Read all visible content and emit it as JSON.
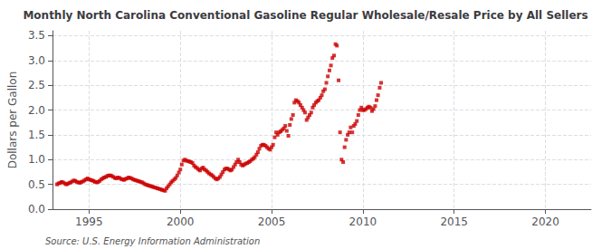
{
  "chart_data": {
    "type": "scatter",
    "title": "Monthly North Carolina Conventional Gasoline Regular Wholesale/Resale Price by All Sellers",
    "ylabel": "Dollars per Gallon",
    "annotations": [
      "Source: U.S. Energy Information Administration"
    ],
    "color": "#cc0000",
    "marker": "square",
    "grid": true,
    "xlim": [
      1993.0,
      2022.5
    ],
    "xticks": [
      1995,
      2000,
      2005,
      2010,
      2015,
      2020
    ],
    "ylim": [
      0.0,
      3.6
    ],
    "yticks": [
      {
        "value": 0.0,
        "label": "0.0"
      },
      0.5,
      {
        "value": 1.0,
        "label": "1.0"
      },
      1.5,
      {
        "value": 2.0,
        "label": "2.0"
      },
      2.5,
      {
        "value": 3.0,
        "label": "3.0"
      },
      3.5
    ],
    "x": [
      1993.25,
      1993.33,
      1993.42,
      1993.5,
      1993.58,
      1993.67,
      1993.75,
      1993.83,
      1993.92,
      1994.0,
      1994.08,
      1994.17,
      1994.25,
      1994.33,
      1994.42,
      1994.5,
      1994.58,
      1994.67,
      1994.75,
      1994.83,
      1994.92,
      1995.0,
      1995.08,
      1995.17,
      1995.25,
      1995.33,
      1995.42,
      1995.5,
      1995.58,
      1995.67,
      1995.75,
      1995.83,
      1995.92,
      1996.0,
      1996.08,
      1996.17,
      1996.25,
      1996.33,
      1996.42,
      1996.5,
      1996.58,
      1996.67,
      1996.75,
      1996.83,
      1996.92,
      1997.0,
      1997.08,
      1997.17,
      1997.25,
      1997.33,
      1997.42,
      1997.5,
      1997.58,
      1997.67,
      1997.75,
      1997.83,
      1997.92,
      1998.0,
      1998.08,
      1998.17,
      1998.25,
      1998.33,
      1998.42,
      1998.5,
      1998.58,
      1998.67,
      1998.75,
      1998.83,
      1998.92,
      1999.0,
      1999.08,
      1999.17,
      1999.25,
      1999.33,
      1999.42,
      1999.5,
      1999.58,
      1999.67,
      1999.75,
      1999.83,
      1999.92,
      2000.0,
      2000.08,
      2000.17,
      2000.25,
      2000.33,
      2000.42,
      2000.5,
      2000.58,
      2000.67,
      2000.75,
      2000.83,
      2000.92,
      2001.0,
      2001.08,
      2001.17,
      2001.25,
      2001.33,
      2001.42,
      2001.5,
      2001.58,
      2001.67,
      2001.75,
      2001.83,
      2001.92,
      2002.0,
      2002.08,
      2002.17,
      2002.25,
      2002.33,
      2002.42,
      2002.5,
      2002.58,
      2002.67,
      2002.75,
      2002.83,
      2002.92,
      2003.0,
      2003.08,
      2003.17,
      2003.25,
      2003.33,
      2003.42,
      2003.5,
      2003.58,
      2003.67,
      2003.75,
      2003.83,
      2003.92,
      2004.0,
      2004.08,
      2004.17,
      2004.25,
      2004.33,
      2004.42,
      2004.5,
      2004.58,
      2004.67,
      2004.75,
      2004.83,
      2004.92,
      2005.0,
      2005.08,
      2005.17,
      2005.25,
      2005.33,
      2005.42,
      2005.5,
      2005.58,
      2005.67,
      2005.75,
      2005.83,
      2005.92,
      2006.0,
      2006.08,
      2006.17,
      2006.25,
      2006.33,
      2006.42,
      2006.5,
      2006.58,
      2006.67,
      2006.75,
      2006.83,
      2006.92,
      2007.0,
      2007.08,
      2007.17,
      2007.25,
      2007.33,
      2007.42,
      2007.5,
      2007.58,
      2007.67,
      2007.75,
      2007.83,
      2007.92,
      2008.0,
      2008.08,
      2008.17,
      2008.25,
      2008.33,
      2008.42,
      2008.5,
      2008.58,
      2008.67,
      2008.75,
      2008.83,
      2008.92,
      2009.0,
      2009.08,
      2009.17,
      2009.25,
      2009.33,
      2009.42,
      2009.5,
      2009.58,
      2009.67,
      2009.75,
      2009.83,
      2009.92,
      2010.0,
      2010.08,
      2010.17,
      2010.25,
      2010.33,
      2010.42,
      2010.5,
      2010.58,
      2010.67,
      2010.75,
      2010.83,
      2010.92,
      2011.0
    ],
    "values": [
      0.5,
      0.52,
      0.53,
      0.55,
      0.54,
      0.52,
      0.5,
      0.51,
      0.53,
      0.54,
      0.56,
      0.58,
      0.57,
      0.55,
      0.54,
      0.53,
      0.55,
      0.56,
      0.58,
      0.6,
      0.62,
      0.6,
      0.59,
      0.58,
      0.57,
      0.55,
      0.54,
      0.55,
      0.57,
      0.6,
      0.62,
      0.64,
      0.65,
      0.67,
      0.68,
      0.68,
      0.67,
      0.65,
      0.63,
      0.62,
      0.64,
      0.63,
      0.61,
      0.6,
      0.59,
      0.61,
      0.62,
      0.64,
      0.63,
      0.62,
      0.6,
      0.59,
      0.58,
      0.57,
      0.56,
      0.55,
      0.54,
      0.52,
      0.5,
      0.49,
      0.48,
      0.47,
      0.46,
      0.45,
      0.44,
      0.43,
      0.42,
      0.41,
      0.4,
      0.39,
      0.38,
      0.37,
      0.42,
      0.46,
      0.5,
      0.54,
      0.57,
      0.6,
      0.63,
      0.68,
      0.74,
      0.8,
      0.9,
      0.98,
      1.0,
      0.98,
      0.97,
      0.96,
      0.95,
      0.93,
      0.88,
      0.85,
      0.83,
      0.8,
      0.78,
      0.82,
      0.84,
      0.8,
      0.78,
      0.75,
      0.72,
      0.7,
      0.68,
      0.65,
      0.62,
      0.6,
      0.62,
      0.65,
      0.7,
      0.75,
      0.8,
      0.82,
      0.82,
      0.8,
      0.78,
      0.8,
      0.85,
      0.9,
      0.95,
      1.0,
      0.95,
      0.9,
      0.88,
      0.9,
      0.92,
      0.93,
      0.95,
      0.97,
      1.0,
      1.02,
      1.05,
      1.1,
      1.15,
      1.22,
      1.28,
      1.3,
      1.3,
      1.28,
      1.25,
      1.22,
      1.2,
      1.25,
      1.3,
      1.45,
      1.55,
      1.5,
      1.55,
      1.57,
      1.6,
      1.63,
      1.68,
      1.58,
      1.48,
      1.7,
      1.82,
      1.9,
      2.15,
      2.2,
      2.18,
      2.15,
      2.1,
      2.05,
      2.0,
      1.95,
      1.8,
      1.85,
      1.9,
      1.95,
      2.05,
      2.1,
      2.15,
      2.18,
      2.2,
      2.25,
      2.3,
      2.38,
      2.42,
      2.55,
      2.68,
      2.8,
      2.9,
      3.05,
      3.1,
      3.33,
      3.3,
      2.6,
      1.55,
      1.0,
      0.95,
      1.25,
      1.4,
      1.5,
      1.55,
      1.65,
      1.55,
      1.68,
      1.72,
      1.78,
      1.9,
      2.0,
      2.05,
      2.0,
      2.0,
      2.02,
      2.05,
      2.07,
      2.05,
      1.98,
      2.02,
      2.08,
      2.2,
      2.3,
      2.45,
      2.55
    ]
  }
}
